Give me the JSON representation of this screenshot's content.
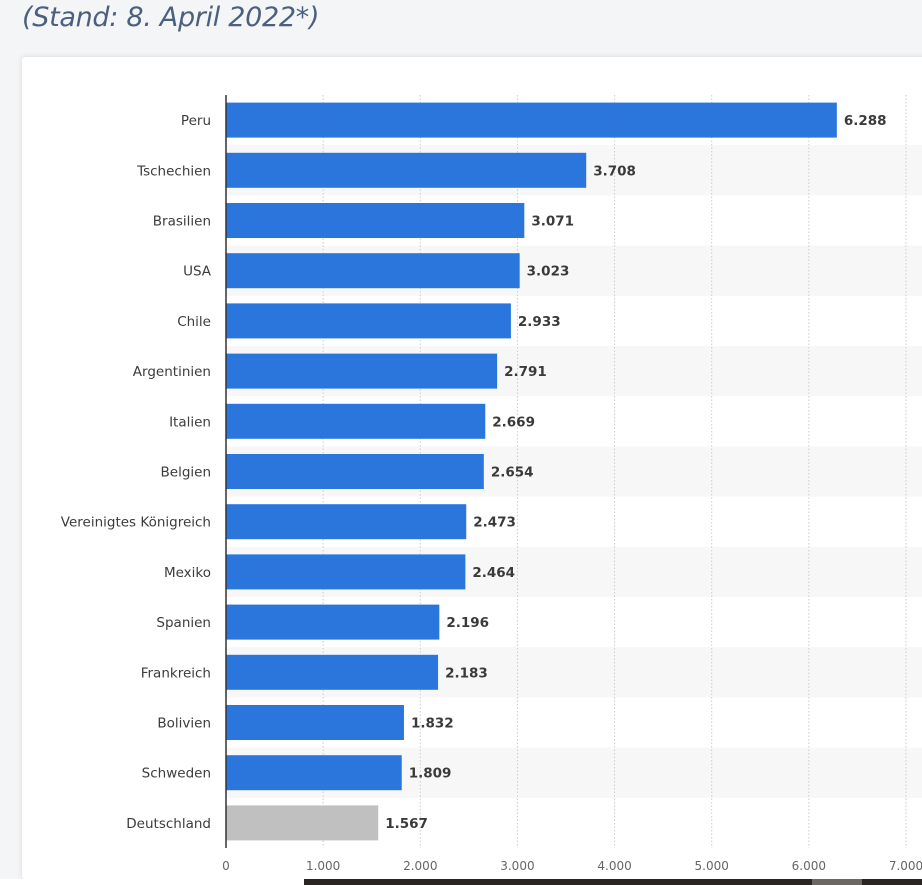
{
  "header": {
    "subtitle": "(Stand: 8. April 2022*)"
  },
  "chart_data": {
    "type": "bar",
    "orientation": "horizontal",
    "categories": [
      "Peru",
      "Tschechien",
      "Brasilien",
      "USA",
      "Chile",
      "Argentinien",
      "Italien",
      "Belgien",
      "Vereinigtes Königreich",
      "Mexiko",
      "Spanien",
      "Frankreich",
      "Bolivien",
      "Schweden",
      "Deutschland"
    ],
    "values": [
      6288,
      3708,
      3071,
      3023,
      2933,
      2791,
      2669,
      2654,
      2473,
      2464,
      2196,
      2183,
      1832,
      1809,
      1567
    ],
    "value_labels": [
      "6.288",
      "3.708",
      "3.071",
      "3.023",
      "2.933",
      "2.791",
      "2.669",
      "2.654",
      "2.473",
      "2.464",
      "2.196",
      "2.183",
      "1.832",
      "1.809",
      "1.567"
    ],
    "xlim": [
      0,
      7000
    ],
    "xticks": [
      0,
      1000,
      2000,
      3000,
      4000,
      5000,
      6000,
      7000
    ],
    "xtick_labels": [
      "0",
      "1.000",
      "2.000",
      "3.000",
      "4.000",
      "5.000",
      "6.000",
      "7.000"
    ],
    "colors": {
      "bar": "#2a76dd",
      "highlight": "#c0c0c0",
      "stripe": "#f7f7f7",
      "grid": "#cccccc"
    },
    "highlight_category": "Deutschland",
    "grid": true
  }
}
